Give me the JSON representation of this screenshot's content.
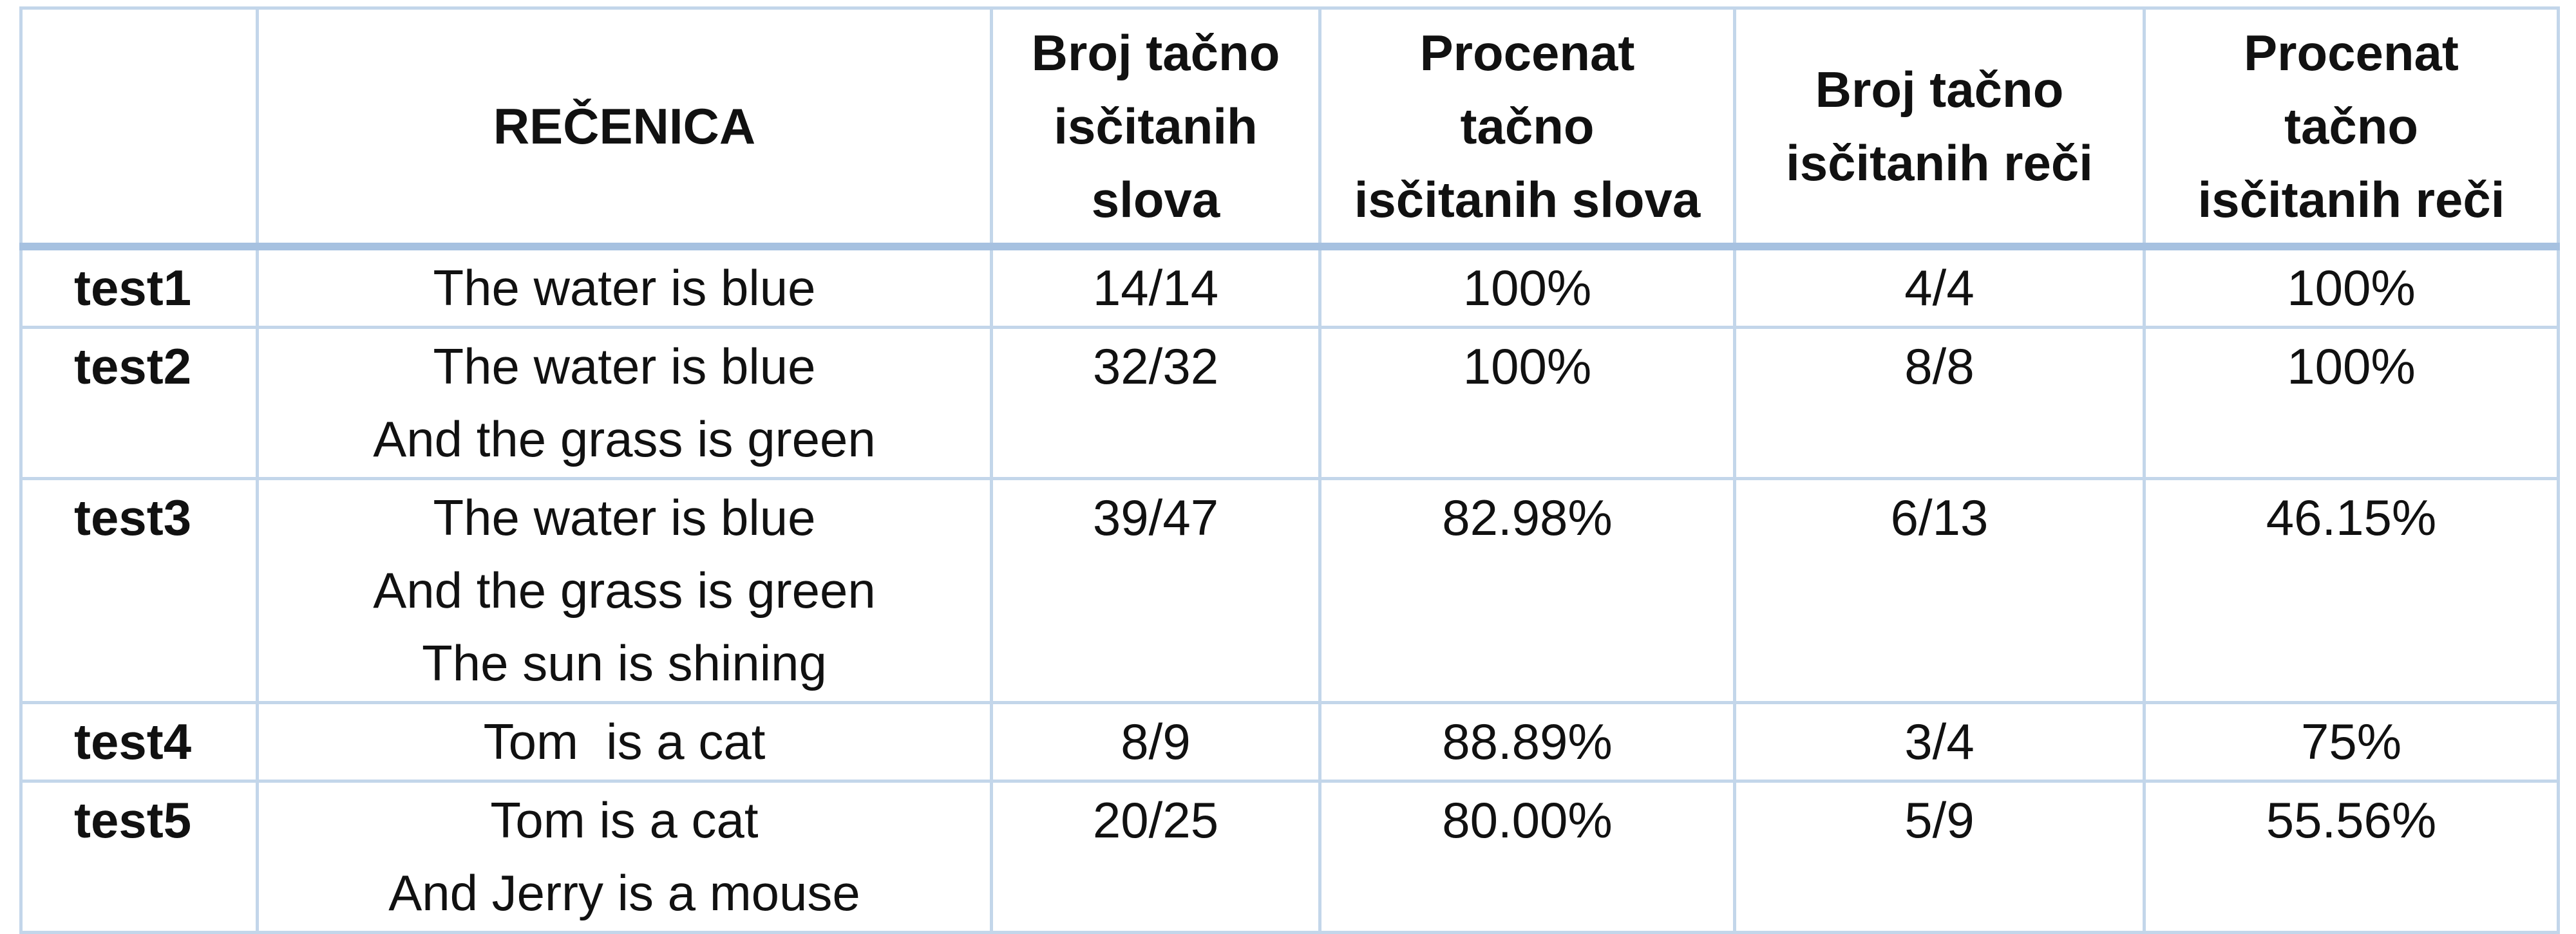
{
  "table": {
    "headers": [
      "",
      "REČENICA",
      [
        "Broj tačno",
        "isčitanih",
        "slova"
      ],
      [
        "Procenat",
        "tačno",
        "isčitanih slova"
      ],
      [
        "Broj tačno",
        "isčitanih reči"
      ],
      [
        "Procenat",
        "tačno",
        "isčitanih reči"
      ]
    ],
    "rows": [
      {
        "label": "test1",
        "sentence": [
          "The water is blue"
        ],
        "letters_correct": "14/14",
        "letters_percent": "100%",
        "words_correct": "4/4",
        "words_percent": "100%"
      },
      {
        "label": "test2",
        "sentence": [
          "The water is blue",
          "And the grass is green"
        ],
        "letters_correct": "32/32",
        "letters_percent": "100%",
        "words_correct": "8/8",
        "words_percent": "100%"
      },
      {
        "label": "test3",
        "sentence": [
          "The water is blue",
          "And the grass is green",
          "The sun is shining"
        ],
        "letters_correct": "39/47",
        "letters_percent": "82.98%",
        "words_correct": "6/13",
        "words_percent": "46.15%"
      },
      {
        "label": "test4",
        "sentence": [
          "Tom  is a cat"
        ],
        "letters_correct": "8/9",
        "letters_percent": "88.89%",
        "words_correct": "3/4",
        "words_percent": "75%"
      },
      {
        "label": "test5",
        "sentence": [
          "Tom is a cat",
          "And Jerry is a mouse"
        ],
        "letters_correct": "20/25",
        "letters_percent": "80.00%",
        "words_correct": "5/9",
        "words_percent": "55.56%"
      }
    ],
    "border_color": "#c3d6ea",
    "header_rule_color": "#a6c1e0"
  }
}
